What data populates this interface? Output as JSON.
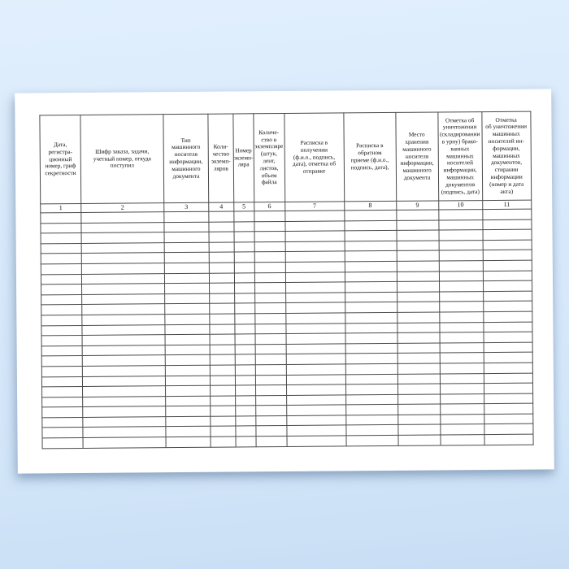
{
  "colors": {
    "background_top": "#e1effd",
    "background_bottom": "#c8ddf4",
    "paper": "#ffffff",
    "table_border": "#4a4a4a",
    "text": "#141414"
  },
  "table": {
    "empty_row_count": 23,
    "columns": [
      {
        "number": "1",
        "header": "Дата,\nрегистра-\nционный\nномер, гриф\nсекретности"
      },
      {
        "number": "2",
        "header": "Шифр заказа, задачи,\nучетный номер, откуда\nпоступил"
      },
      {
        "number": "3",
        "header": "Тип\nмашинного\nносителя\nинформации,\nмашинного\nдокумента"
      },
      {
        "number": "4",
        "header": "Коли-\nчество\nэкземп-\nляров"
      },
      {
        "number": "5",
        "header": "Номер\nэкземп-\nляра"
      },
      {
        "number": "6",
        "header": "Количе-\nство в\nэкземпляре\n(штук, лент,\nлистов,\nобъем\nфайла"
      },
      {
        "number": "7",
        "header": "Расписка в\nполучении\n(ф.и.о., подпись,\nдата), отметка об\nотправке"
      },
      {
        "number": "8",
        "header": "Расписка в\nобратном\nприеме (ф.и.о.,\nподпись, дата),"
      },
      {
        "number": "9",
        "header": "Место\nхранения\nмашинного\nносителя\nинформации,\nмашинного\nдокумента"
      },
      {
        "number": "10",
        "header": "Отметка об\nуничтожении\n(складировании\nв урну) брако-\nванных\nмашинных\nносителей\nинформации,\nмашинных\nдокументов\n(подпись, дата)"
      },
      {
        "number": "11",
        "header": "Отметка\nоб уничтожении\nмашинных\nносителей ин-\nформации,\nмашинных\nдокументов,\nстирании\nинформации\n(номер и  дата\nакта)"
      }
    ]
  }
}
